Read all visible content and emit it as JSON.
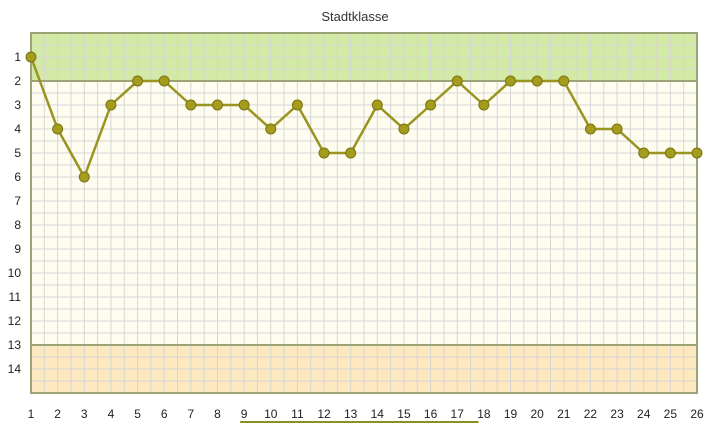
{
  "chart_data": {
    "type": "line",
    "title": "Stadtklasse",
    "xlabel": "",
    "ylabel": "",
    "x": [
      1,
      2,
      3,
      4,
      5,
      6,
      7,
      8,
      9,
      10,
      11,
      12,
      13,
      14,
      15,
      16,
      17,
      18,
      19,
      20,
      21,
      22,
      23,
      24,
      25,
      26
    ],
    "series": [
      {
        "values": [
          1,
          4,
          6,
          3,
          2,
          2,
          3,
          3,
          3,
          4,
          3,
          5,
          5,
          3,
          4,
          3,
          2,
          3,
          2,
          2,
          2,
          4,
          4,
          5,
          5,
          5
        ]
      }
    ],
    "xlim": [
      1,
      26
    ],
    "ylim": [
      0,
      15
    ],
    "y_inverted": true,
    "y_ticks": [
      1,
      2,
      3,
      4,
      5,
      6,
      7,
      8,
      9,
      10,
      11,
      12,
      13,
      14
    ],
    "grid": true,
    "bands": [
      {
        "from": 0,
        "to": 2,
        "color": "#d3e9a6"
      },
      {
        "from": 2,
        "to": 13,
        "color": "#fffcf0"
      },
      {
        "from": 13,
        "to": 15,
        "color": "#fde8c0"
      }
    ],
    "band_border_color": "#9aa477",
    "line_color": "#9a9420",
    "marker_color": "#a49c1c",
    "scrollbar_color": "#8f8f1e",
    "scrollbar_span": [
      9,
      17.8
    ]
  }
}
